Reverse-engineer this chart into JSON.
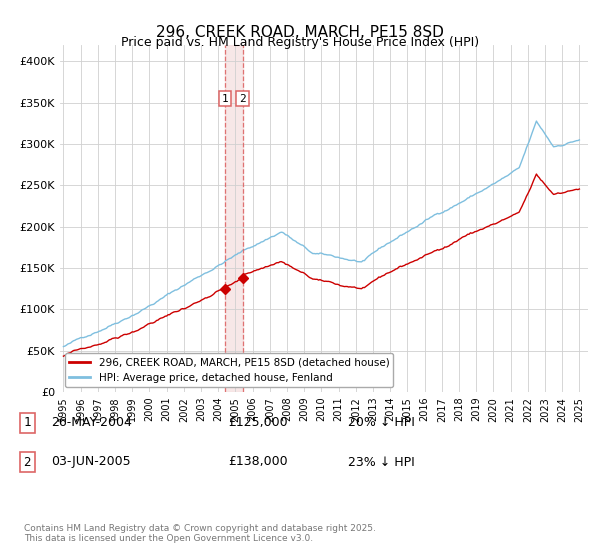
{
  "title": "296, CREEK ROAD, MARCH, PE15 8SD",
  "subtitle": "Price paid vs. HM Land Registry's House Price Index (HPI)",
  "legend_line1": "296, CREEK ROAD, MARCH, PE15 8SD (detached house)",
  "legend_line2": "HPI: Average price, detached house, Fenland",
  "purchase1_label": "1",
  "purchase1_date": "26-MAY-2004",
  "purchase1_price": "£125,000",
  "purchase1_hpi": "20% ↓ HPI",
  "purchase1_year": 2004.38,
  "purchase1_value": 125000,
  "purchase2_label": "2",
  "purchase2_date": "03-JUN-2005",
  "purchase2_price": "£138,000",
  "purchase2_hpi": "23% ↓ HPI",
  "purchase2_year": 2005.42,
  "purchase2_value": 138000,
  "hpi_color": "#7fbfdf",
  "price_color": "#cc0000",
  "vline_color": "#dd6666",
  "vline_fill": "#f0d0d0",
  "footer": "Contains HM Land Registry data © Crown copyright and database right 2025.\nThis data is licensed under the Open Government Licence v3.0.",
  "ylim": [
    0,
    420000
  ],
  "yticks": [
    0,
    50000,
    100000,
    150000,
    200000,
    250000,
    300000,
    350000,
    400000
  ],
  "ytick_labels": [
    "£0",
    "£50K",
    "£100K",
    "£150K",
    "£200K",
    "£250K",
    "£300K",
    "£350K",
    "£400K"
  ],
  "start_year": 1995,
  "end_year": 2025
}
